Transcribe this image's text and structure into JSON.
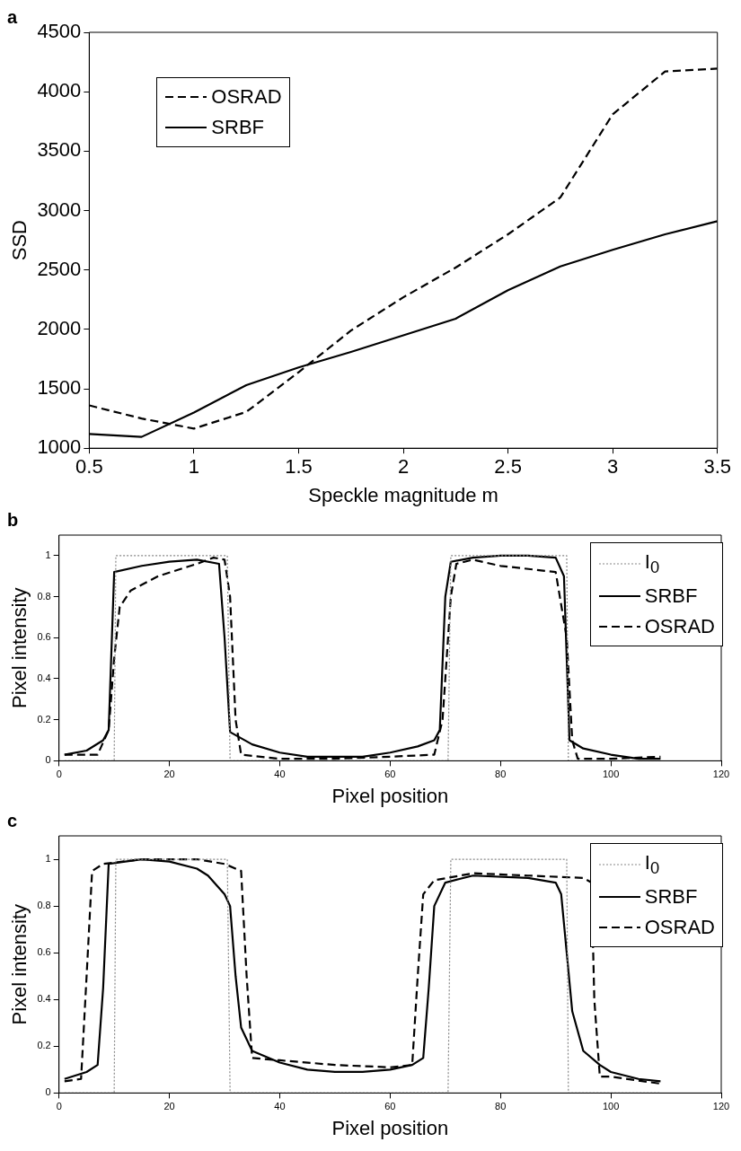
{
  "chart_data": [
    {
      "type": "line",
      "title": "a",
      "xlabel": "Speckle magnitude m",
      "ylabel": "SSD",
      "x": [
        0.5,
        0.75,
        1,
        1.25,
        1.5,
        1.75,
        2,
        2.25,
        2.5,
        2.75,
        3,
        3.25,
        3.5
      ],
      "xlim": [
        0.5,
        3.5
      ],
      "xticks": [
        0.5,
        1,
        1.5,
        2,
        2.5,
        3,
        3.5
      ],
      "ylim": [
        1000,
        4500
      ],
      "yticks": [
        1000,
        1500,
        2000,
        2500,
        3000,
        3500,
        4000,
        4500
      ],
      "legend": "top left",
      "grid": false,
      "series": [
        {
          "name": "OSRAD",
          "color": "#000000",
          "line_style": "dashed",
          "values": [
            1360,
            1250,
            1165,
            1305,
            1640,
            1990,
            2270,
            2520,
            2800,
            3110,
            3810,
            4170,
            4195
          ]
        },
        {
          "name": "SRBF",
          "color": "#000000",
          "line_style": "solid",
          "values": [
            1120,
            1095,
            1300,
            1530,
            1680,
            1810,
            1950,
            2090,
            2330,
            2530,
            2670,
            2800,
            2910
          ]
        }
      ]
    },
    {
      "type": "line",
      "title": "b",
      "xlabel": "Pixel position",
      "ylabel": "Pixel intensity",
      "xlim": [
        0,
        120
      ],
      "xticks": [
        0,
        20,
        40,
        60,
        80,
        100,
        120
      ],
      "ylim": [
        0,
        1.1
      ],
      "yticks": [
        0,
        0.2,
        0.4,
        0.6,
        0.8,
        1
      ],
      "legend": "top right",
      "grid": false,
      "series": [
        {
          "name": "I$_{0}$",
          "color": "#888888",
          "line_style": "dotted",
          "x": [
            1,
            10,
            10.3,
            30.5,
            31,
            70.5,
            71,
            92,
            92.3,
            109
          ],
          "values": [
            0,
            0,
            1,
            1,
            0,
            0,
            1,
            1,
            0,
            0
          ]
        },
        {
          "name": "SRBF",
          "color": "#000000",
          "line_style": "solid",
          "x": [
            1,
            5,
            8,
            9,
            10,
            15,
            20,
            25,
            29,
            30,
            31,
            35,
            40,
            45,
            50,
            55,
            60,
            65,
            68,
            69,
            70,
            71,
            75,
            80,
            85,
            90,
            91.5,
            92.5,
            95,
            100,
            105,
            109
          ],
          "values": [
            0.03,
            0.05,
            0.1,
            0.15,
            0.92,
            0.95,
            0.97,
            0.98,
            0.96,
            0.6,
            0.14,
            0.08,
            0.04,
            0.02,
            0.02,
            0.02,
            0.04,
            0.07,
            0.1,
            0.15,
            0.8,
            0.97,
            0.99,
            1,
            1,
            0.99,
            0.9,
            0.1,
            0.06,
            0.03,
            0.01,
            0.01
          ]
        },
        {
          "name": "OSRAD",
          "color": "#000000",
          "line_style": "dashed",
          "x": [
            1,
            7,
            9,
            10,
            11,
            13,
            18,
            25,
            28,
            30,
            31,
            32,
            33,
            40,
            50,
            60,
            68,
            69.5,
            71,
            72,
            75,
            80,
            90,
            92,
            93,
            94,
            100,
            109
          ],
          "values": [
            0.03,
            0.03,
            0.15,
            0.5,
            0.75,
            0.83,
            0.9,
            0.96,
            0.99,
            0.98,
            0.8,
            0.2,
            0.03,
            0.01,
            0.01,
            0.02,
            0.03,
            0.2,
            0.8,
            0.96,
            0.98,
            0.95,
            0.92,
            0.6,
            0.1,
            0.01,
            0.01,
            0.02
          ]
        }
      ]
    },
    {
      "type": "line",
      "title": "c",
      "xlabel": "Pixel position",
      "ylabel": "Pixel intensity",
      "xlim": [
        0,
        120
      ],
      "xticks": [
        0,
        20,
        40,
        60,
        80,
        100,
        120
      ],
      "ylim": [
        0,
        1.1
      ],
      "yticks": [
        0,
        0.2,
        0.4,
        0.6,
        0.8,
        1
      ],
      "legend": "top right",
      "grid": false,
      "series": [
        {
          "name": "I$_{0}$",
          "color": "#888888",
          "line_style": "dotted",
          "x": [
            1,
            10,
            10.3,
            30.5,
            31,
            70.5,
            71,
            92,
            92.3,
            109
          ],
          "values": [
            0,
            0,
            1,
            1,
            0,
            0,
            1,
            1,
            0,
            0
          ]
        },
        {
          "name": "SRBF",
          "color": "#000000",
          "line_style": "solid",
          "x": [
            1,
            5,
            7,
            8,
            9,
            12,
            15,
            20,
            25,
            27,
            30,
            31,
            32,
            33,
            35,
            40,
            45,
            50,
            55,
            60,
            64,
            66,
            67,
            68,
            70,
            75,
            85,
            90,
            91,
            92,
            93,
            95,
            98,
            100,
            105,
            109
          ],
          "values": [
            0.06,
            0.09,
            0.12,
            0.45,
            0.98,
            0.99,
            1,
            0.99,
            0.96,
            0.93,
            0.85,
            0.8,
            0.5,
            0.28,
            0.18,
            0.13,
            0.1,
            0.09,
            0.09,
            0.1,
            0.12,
            0.15,
            0.45,
            0.8,
            0.9,
            0.93,
            0.92,
            0.9,
            0.85,
            0.6,
            0.35,
            0.18,
            0.12,
            0.09,
            0.06,
            0.05
          ]
        },
        {
          "name": "OSRAD",
          "color": "#000000",
          "line_style": "dashed",
          "x": [
            1,
            4,
            5,
            6,
            8,
            15,
            25,
            30,
            33,
            34,
            35,
            40,
            50,
            60,
            64,
            65,
            66,
            68,
            75,
            85,
            95,
            96.5,
            97,
            98,
            100,
            109
          ],
          "values": [
            0.05,
            0.06,
            0.5,
            0.95,
            0.98,
            1,
            1,
            0.98,
            0.95,
            0.5,
            0.15,
            0.14,
            0.12,
            0.11,
            0.12,
            0.5,
            0.85,
            0.91,
            0.94,
            0.93,
            0.92,
            0.9,
            0.4,
            0.07,
            0.07,
            0.04
          ]
        }
      ]
    }
  ]
}
